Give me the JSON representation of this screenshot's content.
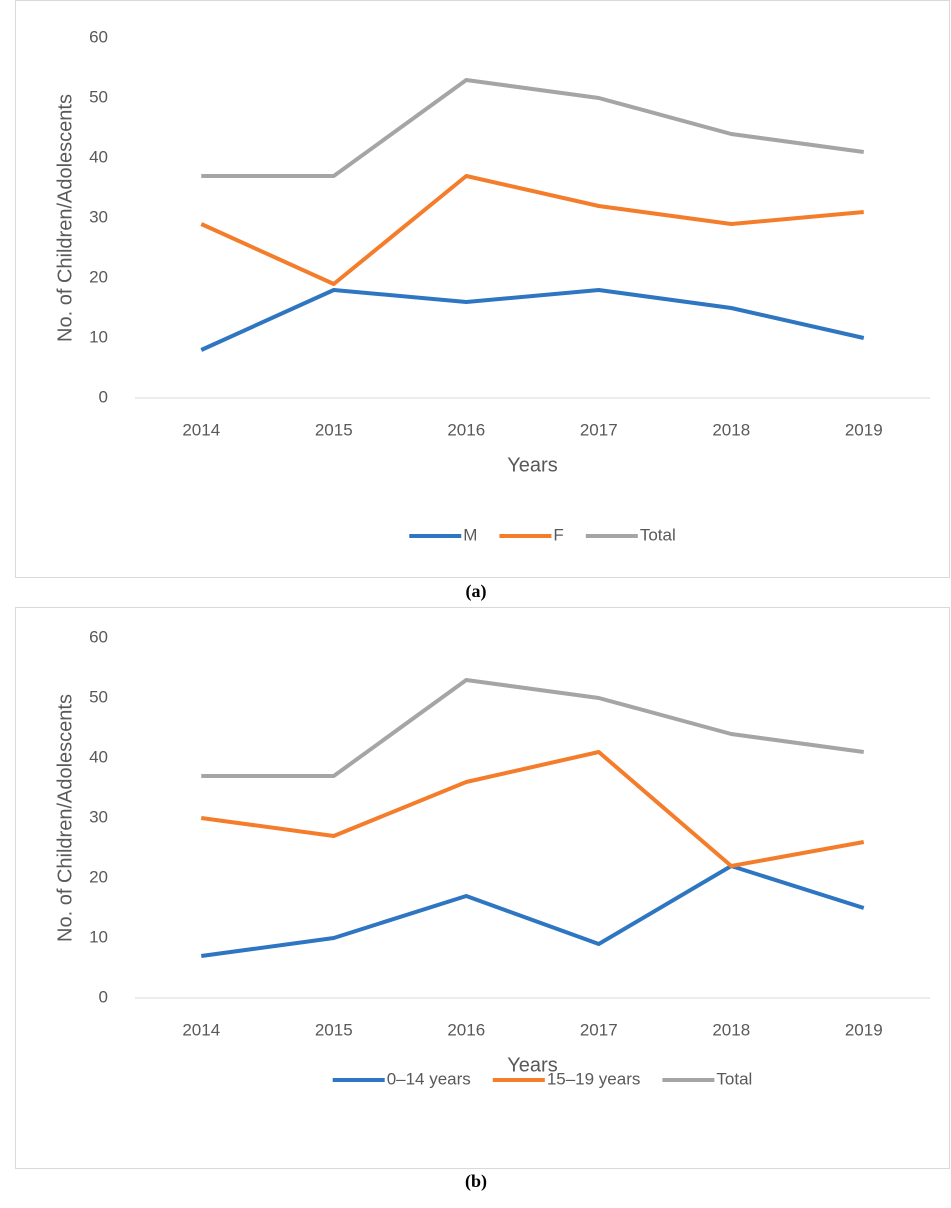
{
  "chart_data": [
    {
      "type": "line",
      "caption": "(a)",
      "x_label": "Years",
      "y_label": "No. of Children/Adolescents",
      "categories": [
        "2014",
        "2015",
        "2016",
        "2017",
        "2018",
        "2019"
      ],
      "ylim": [
        0,
        60
      ],
      "yticks": [
        0,
        10,
        20,
        30,
        40,
        50,
        60
      ],
      "legend": "bottom",
      "series": [
        {
          "name": "M",
          "color": "#2e75c2",
          "values": [
            8,
            18,
            16,
            18,
            15,
            10
          ]
        },
        {
          "name": "F",
          "color": "#f47d2b",
          "values": [
            29,
            19,
            37,
            32,
            29,
            31
          ]
        },
        {
          "name": "Total",
          "color": "#a5a5a5",
          "values": [
            37,
            37,
            53,
            50,
            44,
            41
          ]
        }
      ]
    },
    {
      "type": "line",
      "caption": "(b)",
      "x_label": "Years",
      "y_label": "No. of Children/Adolescents",
      "categories": [
        "2014",
        "2015",
        "2016",
        "2017",
        "2018",
        "2019"
      ],
      "ylim": [
        0,
        60
      ],
      "yticks": [
        0,
        10,
        20,
        30,
        40,
        50,
        60
      ],
      "legend": "bottom",
      "series": [
        {
          "name": "0–14 years",
          "color": "#2e75c2",
          "values": [
            7,
            10,
            17,
            9,
            22,
            15
          ]
        },
        {
          "name": "15–19 years",
          "color": "#f47d2b",
          "values": [
            30,
            27,
            36,
            41,
            22,
            26
          ]
        },
        {
          "name": "Total",
          "color": "#a5a5a5",
          "values": [
            37,
            37,
            53,
            50,
            44,
            41
          ]
        }
      ]
    }
  ]
}
